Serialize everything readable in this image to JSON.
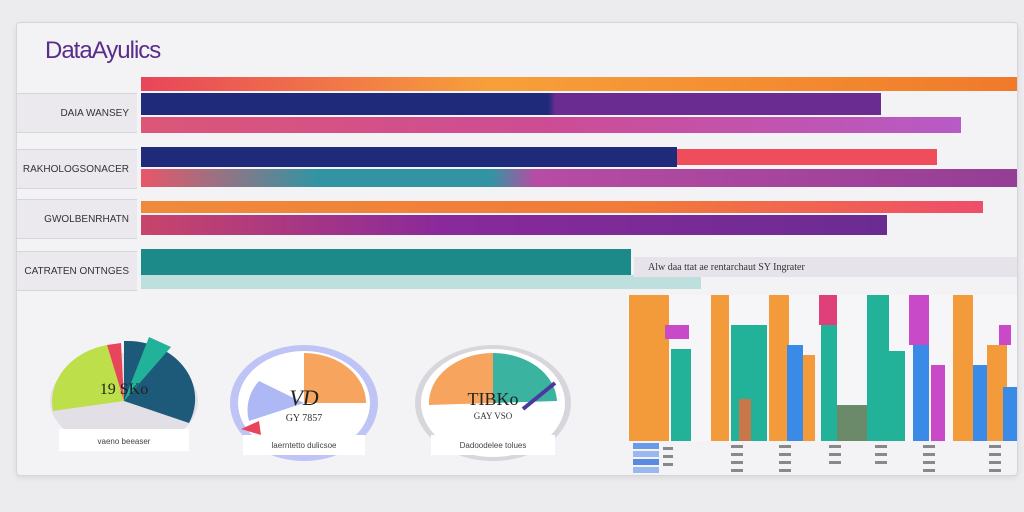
{
  "app": {
    "title": "DataAyulics"
  },
  "rows": [
    {
      "label": "DAIA WANSEY"
    },
    {
      "label": "RAKHOLOGSONACER"
    },
    {
      "label": "GWOLBENRHATN"
    },
    {
      "label": "CATRATEN ONTNGES"
    }
  ],
  "caption": {
    "text": "Alw daa ttat ae rentarchaut SY Ingrater"
  },
  "gauges": [
    {
      "value": "19 SKo",
      "sub": "",
      "caption": "vaeno beeaser"
    },
    {
      "value": "VD",
      "sub": "GY 7857",
      "caption": "laerntetto dulicsoe"
    },
    {
      "value": "TIBKo",
      "sub": "GAY VSO",
      "caption": "Dadoodelee tolues"
    }
  ],
  "colors": {
    "purple": "#6a2c91",
    "navy": "#1f2a7a",
    "teal": "#1d8a8a",
    "orange": "#f08a3a",
    "magenta": "#c83a8a",
    "red": "#e8455a"
  }
}
